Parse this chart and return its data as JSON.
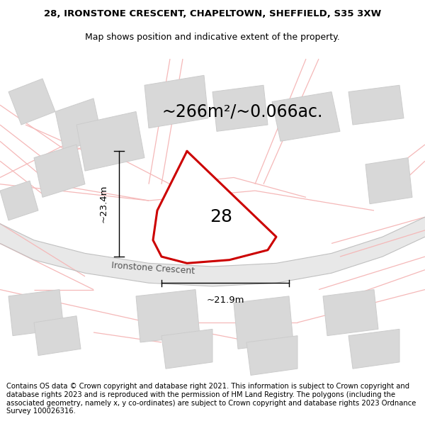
{
  "title_line1": "28, IRONSTONE CRESCENT, CHAPELTOWN, SHEFFIELD, S35 3XW",
  "title_line2": "Map shows position and indicative extent of the property.",
  "footer_text": "Contains OS data © Crown copyright and database right 2021. This information is subject to Crown copyright and database rights 2023 and is reproduced with the permission of HM Land Registry. The polygons (including the associated geometry, namely x, y co-ordinates) are subject to Crown copyright and database rights 2023 Ordnance Survey 100026316.",
  "area_label": "~266m²/~0.066ac.",
  "plot_number": "28",
  "road_label": "Ironstone Crescent",
  "dim_vertical": "~23.4m",
  "dim_horizontal": "~21.9m",
  "background_color": "#ffffff",
  "map_bg": "#ffffff",
  "plot_edge_color": "#cc0000",
  "faint_line_color": "#f5b8b8",
  "building_color": "#d8d8d8",
  "building_edge_color": "#cccccc",
  "road_fill_color": "#e8e8e8",
  "road_edge_color": "#c0c0c0",
  "dim_line_color": "#000000",
  "road_text_color": "#555555",
  "title_fontsize": 9.5,
  "footer_fontsize": 7.2,
  "area_fontsize": 17,
  "plot_num_fontsize": 18,
  "road_fontsize": 9,
  "dim_fontsize": 9.5
}
